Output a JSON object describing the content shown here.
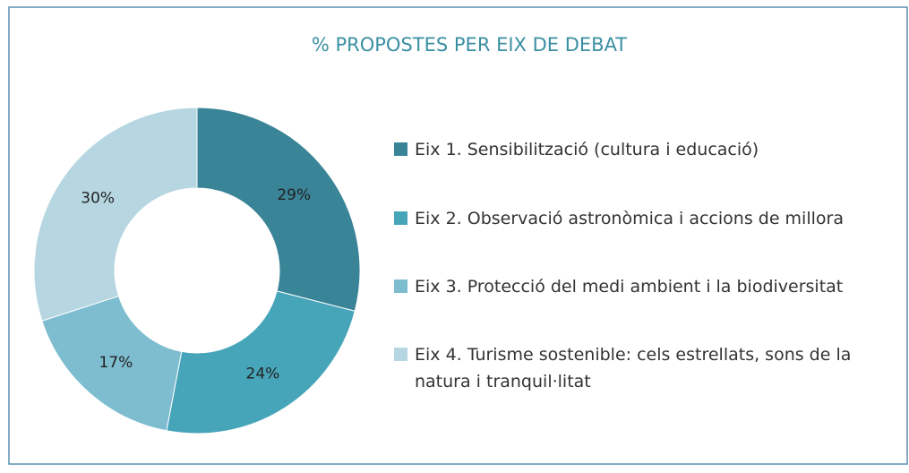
{
  "chart_data": {
    "type": "donut",
    "title": "% PROPOSTES PER EIX DE DEBAT",
    "categories": [
      "Eix 1. Sensibilització (cultura i educació)",
      "Eix 2. Observació astronòmica i accions de millora",
      "Eix 3. Protecció del medi ambient i la biodiversitat",
      "Eix 4. Turisme sostenible: cels estrellats, sons de la natura i tranquil·litat"
    ],
    "values": [
      29,
      24,
      17,
      30
    ],
    "value_labels": [
      "29%",
      "24%",
      "17%",
      "30%"
    ],
    "colors": [
      "#3a8497",
      "#47a5ba",
      "#7ebcd0",
      "#b6d6e1"
    ]
  }
}
